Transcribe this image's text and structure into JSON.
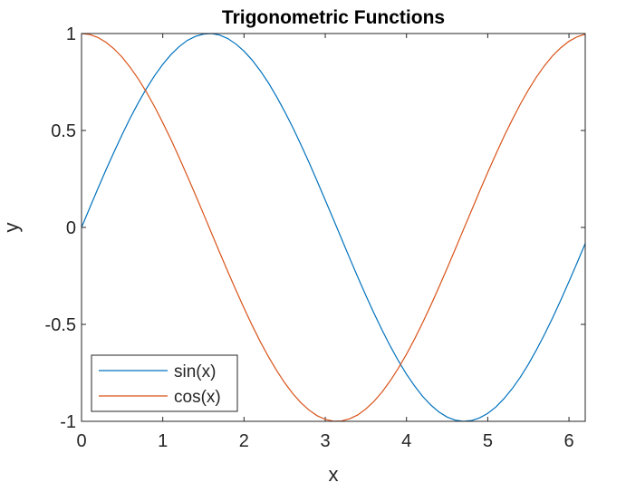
{
  "chart_data": {
    "type": "line",
    "title": "Trigonometric Functions",
    "xlabel": "x",
    "ylabel": "y",
    "xlim": [
      0,
      6.2
    ],
    "ylim": [
      -1,
      1
    ],
    "xticks": [
      "0",
      "1",
      "2",
      "3",
      "4",
      "5",
      "6"
    ],
    "yticks": [
      "-1",
      "-0.5",
      "0",
      "0.5",
      "1"
    ],
    "grid": false,
    "legend_position": "bottom-left",
    "x": [
      0,
      0.1,
      0.2,
      0.3,
      0.4,
      0.5,
      0.6,
      0.7,
      0.8,
      0.9,
      1.0,
      1.1,
      1.2,
      1.3,
      1.4,
      1.5,
      1.6,
      1.7,
      1.8,
      1.9,
      2.0,
      2.1,
      2.2,
      2.3,
      2.4,
      2.5,
      2.6,
      2.7,
      2.8,
      2.9,
      3.0,
      3.1,
      3.2,
      3.3,
      3.4,
      3.5,
      3.6,
      3.7,
      3.8,
      3.9,
      4.0,
      4.1,
      4.2,
      4.3,
      4.4,
      4.5,
      4.6,
      4.7,
      4.8,
      4.9,
      5.0,
      5.1,
      5.2,
      5.3,
      5.4,
      5.5,
      5.6,
      5.7,
      5.8,
      5.9,
      6.0,
      6.1,
      6.2
    ],
    "series": [
      {
        "name": "sin(x)",
        "color": "#0072BD",
        "values": [
          0.0,
          0.1,
          0.199,
          0.296,
          0.389,
          0.479,
          0.565,
          0.644,
          0.717,
          0.783,
          0.841,
          0.891,
          0.932,
          0.964,
          0.985,
          0.997,
          1.0,
          0.992,
          0.974,
          0.946,
          0.909,
          0.863,
          0.808,
          0.746,
          0.675,
          0.598,
          0.516,
          0.427,
          0.335,
          0.239,
          0.141,
          0.042,
          -0.058,
          -0.158,
          -0.256,
          -0.351,
          -0.443,
          -0.53,
          -0.612,
          -0.688,
          -0.757,
          -0.818,
          -0.872,
          -0.916,
          -0.952,
          -0.978,
          -0.994,
          -1.0,
          -0.996,
          -0.982,
          -0.959,
          -0.926,
          -0.883,
          -0.832,
          -0.773,
          -0.706,
          -0.631,
          -0.551,
          -0.465,
          -0.374,
          -0.279,
          -0.182,
          -0.083
        ]
      },
      {
        "name": "cos(x)",
        "color": "#D95319",
        "values": [
          1.0,
          0.995,
          0.98,
          0.955,
          0.921,
          0.878,
          0.825,
          0.765,
          0.697,
          0.622,
          0.54,
          0.454,
          0.362,
          0.267,
          0.17,
          0.071,
          -0.029,
          -0.129,
          -0.227,
          -0.323,
          -0.416,
          -0.505,
          -0.589,
          -0.666,
          -0.737,
          -0.801,
          -0.857,
          -0.904,
          -0.942,
          -0.971,
          -0.99,
          -0.999,
          -0.998,
          -0.987,
          -0.967,
          -0.936,
          -0.897,
          -0.848,
          -0.791,
          -0.726,
          -0.654,
          -0.575,
          -0.49,
          -0.401,
          -0.307,
          -0.211,
          -0.112,
          -0.012,
          0.087,
          0.187,
          0.284,
          0.378,
          0.469,
          0.554,
          0.635,
          0.709,
          0.776,
          0.835,
          0.886,
          0.927,
          0.96,
          0.983,
          0.997
        ]
      }
    ]
  }
}
